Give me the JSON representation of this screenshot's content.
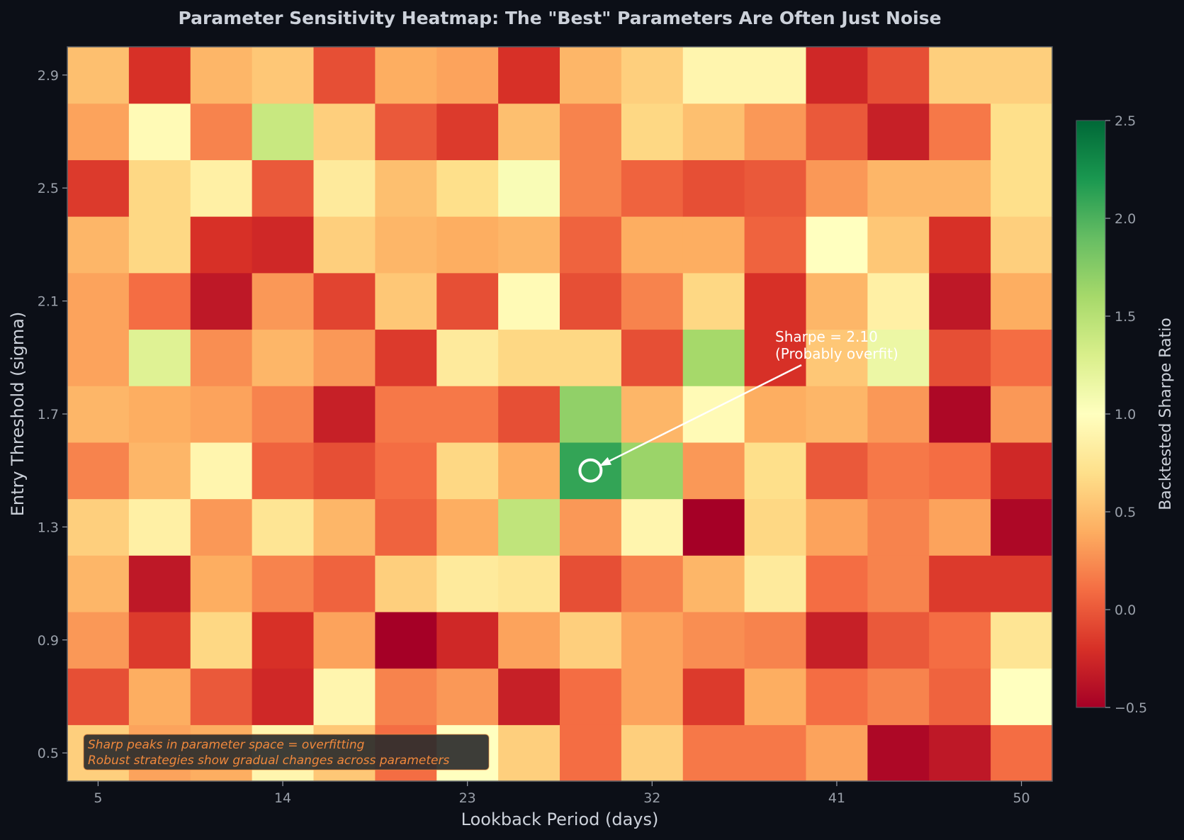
{
  "chart_data": {
    "type": "heatmap",
    "title": "Parameter Sensitivity Heatmap: The \"Best\" Parameters Are Often Just Noise",
    "xlabel": "Lookback Period (days)",
    "ylabel": "Entry Threshold (sigma)",
    "colorbar_label": "Backtested Sharpe Ratio",
    "colormap": "RdYlGn",
    "x": [
      5,
      8,
      11,
      14,
      17,
      20,
      23,
      26,
      29,
      32,
      35,
      38,
      41,
      44,
      47,
      50
    ],
    "y": [
      0.5,
      0.7,
      0.9,
      1.1,
      1.3,
      1.5,
      1.7,
      1.9,
      2.1,
      2.3,
      2.5,
      2.7,
      2.9
    ],
    "x_ticks": [
      5,
      14,
      23,
      32,
      41,
      50
    ],
    "y_ticks": [
      0.5,
      0.9,
      1.3,
      1.7,
      2.1,
      2.5,
      2.9
    ],
    "y_tick_labels": [
      "0.5",
      "0.9",
      "1.3",
      "1.7",
      "2.1",
      "2.5",
      "2.9"
    ],
    "colorbar_range": [
      -0.5,
      2.5
    ],
    "colorbar_ticks": [
      -0.5,
      0.0,
      0.5,
      1.0,
      1.5,
      2.0,
      2.5
    ],
    "colorbar_tick_labels": [
      "−0.5",
      "0.0",
      "0.5",
      "1.0",
      "1.5",
      "2.0",
      "2.5"
    ],
    "values": [
      [
        0.6,
        0.35,
        0.4,
        0.9,
        0.55,
        0.1,
        1.0,
        0.6,
        0.1,
        0.6,
        0.15,
        0.15,
        0.35,
        -0.45,
        -0.35,
        0.1
      ],
      [
        -0.05,
        0.4,
        0.0,
        -0.25,
        0.9,
        0.2,
        0.3,
        -0.3,
        0.1,
        0.35,
        -0.15,
        0.4,
        0.1,
        0.2,
        0.05,
        1.0
      ],
      [
        0.3,
        -0.15,
        0.65,
        -0.2,
        0.35,
        -0.5,
        -0.25,
        0.35,
        0.6,
        0.35,
        0.25,
        0.2,
        -0.3,
        0.0,
        0.1,
        0.75
      ],
      [
        0.45,
        -0.35,
        0.4,
        0.2,
        0.05,
        0.6,
        0.8,
        0.75,
        -0.05,
        0.2,
        0.45,
        0.8,
        0.1,
        0.2,
        -0.15,
        -0.15
      ],
      [
        0.6,
        0.85,
        0.3,
        0.75,
        0.45,
        0.05,
        0.4,
        1.45,
        0.3,
        0.9,
        -0.5,
        0.65,
        0.35,
        0.2,
        0.35,
        -0.45
      ],
      [
        0.2,
        0.45,
        0.9,
        0.05,
        -0.05,
        0.1,
        0.65,
        0.4,
        2.1,
        1.65,
        0.3,
        0.7,
        0.0,
        0.15,
        0.1,
        -0.25
      ],
      [
        0.45,
        0.4,
        0.35,
        0.2,
        -0.3,
        0.15,
        0.15,
        -0.05,
        1.7,
        0.45,
        0.95,
        0.4,
        0.45,
        0.3,
        -0.45,
        0.3
      ],
      [
        0.35,
        1.25,
        0.25,
        0.45,
        0.3,
        -0.15,
        0.8,
        0.65,
        0.65,
        -0.05,
        1.6,
        -0.2,
        0.55,
        1.15,
        -0.05,
        0.1
      ],
      [
        0.35,
        0.1,
        -0.35,
        0.3,
        -0.1,
        0.55,
        -0.05,
        0.95,
        -0.05,
        0.2,
        0.65,
        -0.2,
        0.45,
        0.85,
        -0.35,
        0.4
      ],
      [
        0.45,
        0.65,
        -0.2,
        -0.25,
        0.6,
        0.45,
        0.4,
        0.45,
        0.05,
        0.4,
        0.4,
        0.05,
        1.0,
        0.55,
        -0.2,
        0.6
      ],
      [
        -0.15,
        0.65,
        0.85,
        0.0,
        0.8,
        0.5,
        0.7,
        1.05,
        0.2,
        0.05,
        -0.05,
        0.0,
        0.3,
        0.45,
        0.45,
        0.7
      ],
      [
        0.35,
        0.95,
        0.2,
        1.4,
        0.6,
        0.0,
        -0.15,
        0.5,
        0.2,
        0.65,
        0.5,
        0.3,
        0.0,
        -0.3,
        0.15,
        0.7
      ],
      [
        0.5,
        -0.2,
        0.45,
        0.55,
        -0.05,
        0.4,
        0.35,
        -0.2,
        0.45,
        0.6,
        0.9,
        0.9,
        -0.25,
        -0.05,
        0.6,
        0.6
      ]
    ],
    "highlight": {
      "col": 8,
      "row": 5
    },
    "annotation": {
      "line1": "Sharpe = 2.10",
      "line2": "(Probably overfit)"
    },
    "note": {
      "line1": "Sharp peaks in parameter space = overfitting",
      "line2": "Robust strategies show gradual changes across parameters"
    },
    "colors": {
      "background": "#0c0f17",
      "annotation_text": "#ffffff",
      "note_text": "#f0883c",
      "note_box": "#2c2c2c"
    }
  }
}
